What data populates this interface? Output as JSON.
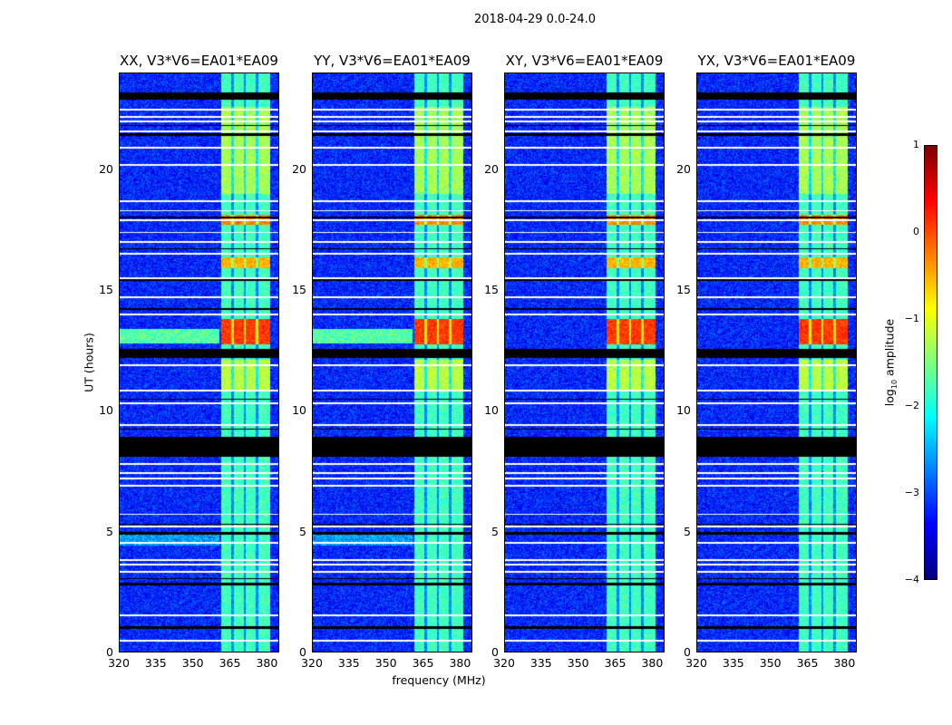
{
  "suptitle": "2018-04-29 0.0-24.0",
  "chart_data": {
    "type": "heatmap",
    "title": "2018-04-29 0.0-24.0",
    "xlabel": "frequency (MHz)",
    "ylabel": "UT (hours)",
    "xlim": [
      320,
      385
    ],
    "ylim": [
      0,
      24
    ],
    "xticks": [
      "320",
      "335",
      "350",
      "365",
      "380"
    ],
    "yticks": [
      "0",
      "5",
      "10",
      "15",
      "20"
    ],
    "panels": [
      {
        "title": "XX, V3*V6=EA01*EA09",
        "bright_bursts": true
      },
      {
        "title": "YY, V3*V6=EA01*EA09",
        "bright_bursts": true
      },
      {
        "title": "XY, V3*V6=EA01*EA09",
        "bright_bursts": true
      },
      {
        "title": "YX, V3*V6=EA01*EA09",
        "bright_bursts": true
      }
    ],
    "colorbar": {
      "label_main": "log",
      "label_sub": "10",
      "label_rest": " amplitude",
      "range": [
        -4,
        1
      ],
      "ticks": [
        "1",
        "0",
        "−1",
        "−2",
        "−3",
        "−4"
      ],
      "colormap": "jet"
    },
    "background_level": -3.2,
    "band_mhz": [
      361.5,
      381.5
    ],
    "band_level": -1.8,
    "channel_gaps_mhz": [
      366.3,
      371.3,
      376.3
    ],
    "bright_intervals_ut": [
      {
        "range": [
          10.8,
          12.1
        ],
        "level": -1.2
      },
      {
        "range": [
          12.75,
          13.8
        ],
        "level": 0.1
      },
      {
        "range": [
          15.9,
          16.35
        ],
        "level": -0.5
      },
      {
        "range": [
          17.7,
          18.15
        ],
        "level": -0.3
      },
      {
        "range": [
          19.0,
          22.6
        ],
        "level": -1.3
      }
    ],
    "flagged_white_ut": [
      0.45,
      1.5,
      2.8,
      3.3,
      3.6,
      3.8,
      4.5,
      5.2,
      5.7,
      6.9,
      7.2,
      7.4,
      7.8,
      9.4,
      10.3,
      10.85,
      11.9,
      12.4,
      14.0,
      14.7,
      15.5,
      16.5,
      17.0,
      17.4,
      17.9,
      18.3,
      18.7,
      20.2,
      20.9,
      21.6,
      22.0,
      22.2,
      22.5
    ],
    "flagged_black_ut": [
      [
        0.95,
        1.05
      ],
      [
        2.75,
        2.85
      ],
      [
        3.0,
        3.05
      ],
      [
        4.85,
        4.95
      ],
      [
        5.25,
        5.3
      ],
      [
        8.1,
        8.9
      ],
      [
        9.2,
        9.25
      ],
      [
        10.45,
        10.5
      ],
      [
        12.2,
        12.55
      ],
      [
        14.2,
        14.25
      ],
      [
        15.4,
        15.45
      ],
      [
        16.7,
        16.75
      ],
      [
        18.0,
        18.05
      ],
      [
        21.4,
        21.5
      ],
      [
        21.8,
        21.85
      ],
      [
        22.9,
        23.2
      ]
    ]
  }
}
